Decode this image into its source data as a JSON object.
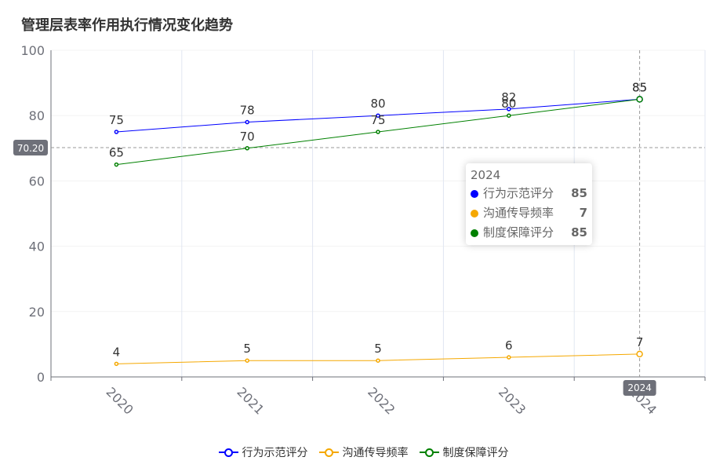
{
  "chart_data": {
    "type": "line",
    "title": "管理层表率作用执行情况变化趋势",
    "categories": [
      "2020",
      "2021",
      "2022",
      "2023",
      "2024"
    ],
    "ylim": [
      0,
      100
    ],
    "yticks": [
      0,
      20,
      40,
      60,
      80,
      100
    ],
    "grid": true,
    "legend_position": "bottom",
    "series": [
      {
        "name": "行为示范评分",
        "color": "#0000ff",
        "values": [
          75,
          78,
          80,
          82,
          85
        ]
      },
      {
        "name": "沟通传导频率",
        "color": "#f5a800",
        "values": [
          4,
          5,
          5,
          6,
          7
        ]
      },
      {
        "name": "制度保障评分",
        "color": "#008000",
        "values": [
          65,
          70,
          75,
          80,
          85
        ]
      }
    ],
    "crosshair": {
      "y_value_label": "70.20",
      "y_value": 70.2,
      "x_label": "2024"
    },
    "tooltip": {
      "title": "2024",
      "rows": [
        {
          "name": "行为示范评分",
          "value": "85",
          "color": "#0000ff"
        },
        {
          "name": "沟通传导频率",
          "value": "7",
          "color": "#f5a800"
        },
        {
          "name": "制度保障评分",
          "value": "85",
          "color": "#008000"
        }
      ]
    }
  }
}
